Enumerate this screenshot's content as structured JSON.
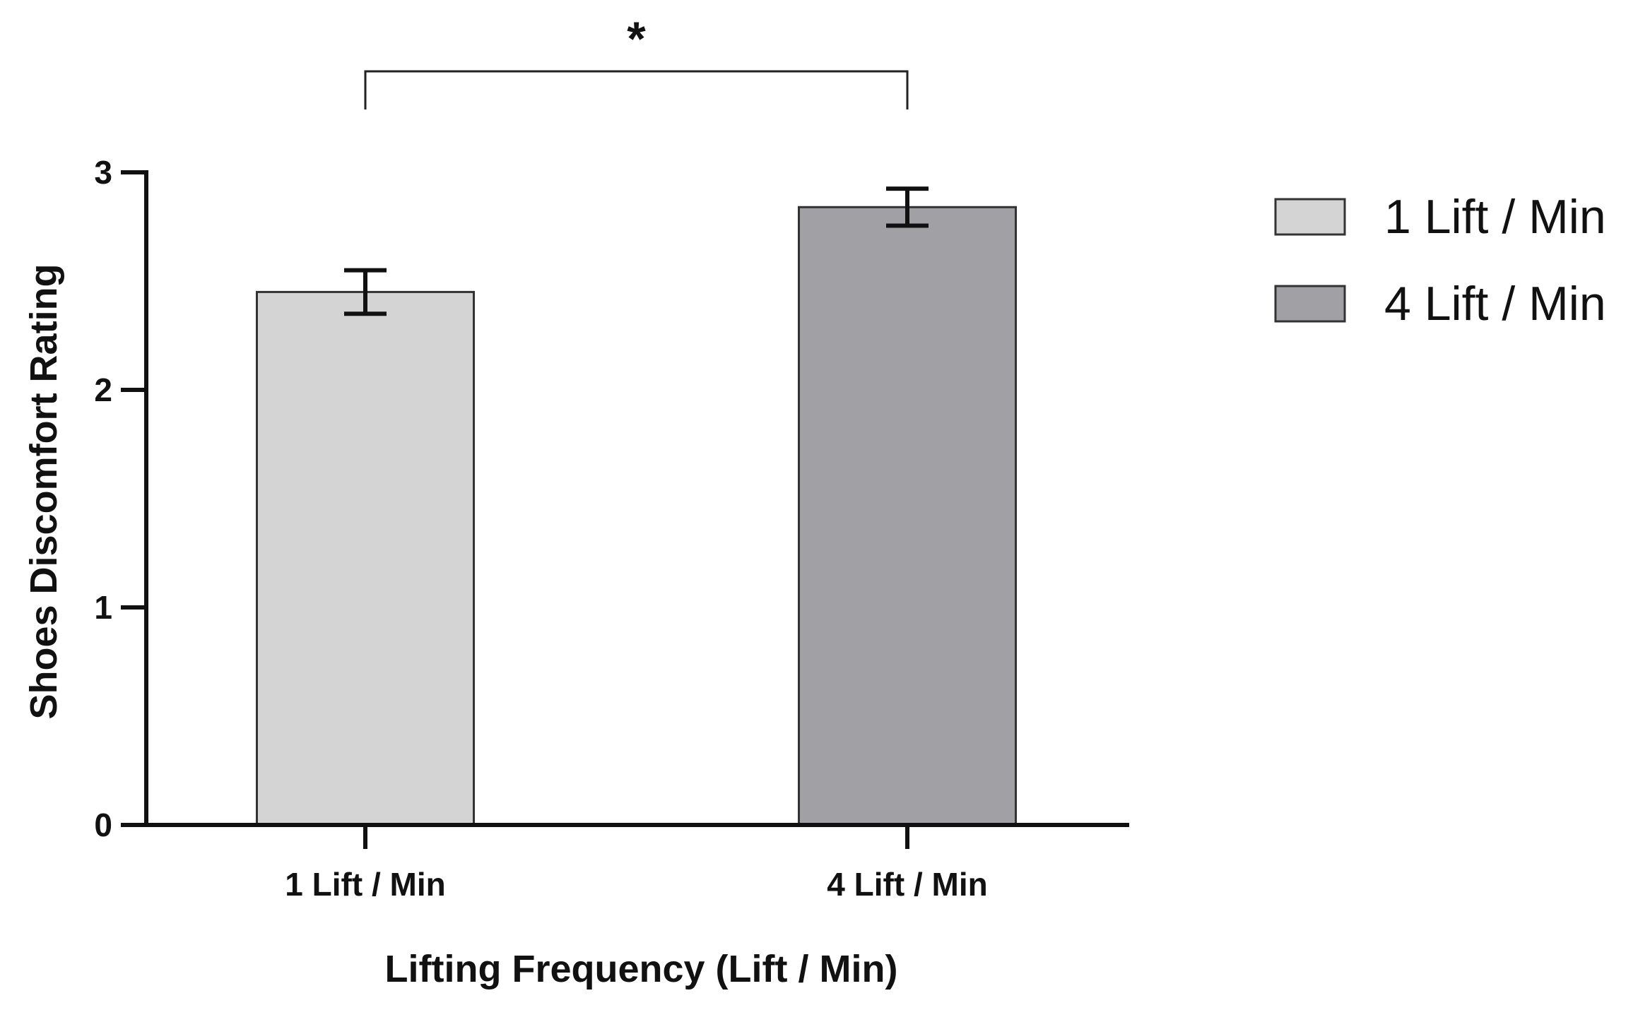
{
  "chart_data": {
    "type": "bar",
    "title": "",
    "xlabel": "Lifting Frequency (Lift / Min)",
    "ylabel": "Shoes Discomfort Rating",
    "categories": [
      "1 Lift / Min",
      "4 Lift / Min"
    ],
    "values": [
      2.45,
      2.84
    ],
    "errors": [
      0.1,
      0.085
    ],
    "ylim": [
      0,
      3
    ],
    "yticks": [
      "0",
      "1",
      "2",
      "3"
    ],
    "grid": false,
    "legend": {
      "placement": "top-right",
      "entries": [
        {
          "label": "1 Lift / Min",
          "color": "#d4d4d4"
        },
        {
          "label": "4 Lift / Min",
          "color": "#a1a0a5"
        }
      ]
    },
    "colors": [
      "#d4d4d4",
      "#a1a0a5"
    ],
    "annotations": [
      {
        "type": "significance-bracket",
        "between": [
          "1 Lift / Min",
          "4 Lift / Min"
        ],
        "label": "*"
      }
    ]
  }
}
